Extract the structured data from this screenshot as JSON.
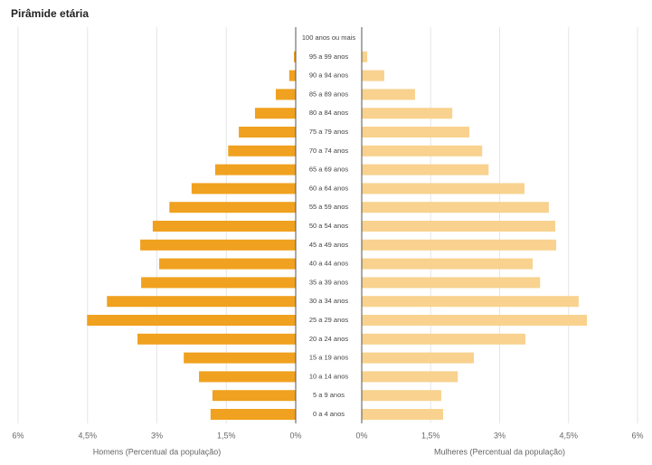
{
  "chart_data": {
    "type": "pyramid",
    "title": "Pirâmide etária",
    "categories": [
      "100 anos ou mais",
      "95 a 99 anos",
      "90 a 94 anos",
      "85 a 89 anos",
      "80 a 84 anos",
      "75 a 79 anos",
      "70 a 74 anos",
      "65 a 69 anos",
      "60 a 64 anos",
      "55 a 59 anos",
      "50 a 54 anos",
      "45 a 49 anos",
      "40 a 44 anos",
      "35 a 39 anos",
      "30 a 34 anos",
      "25 a 29 anos",
      "20 a 24 anos",
      "15 a 19 anos",
      "10 a 14 anos",
      "5 a 9 anos",
      "0 a 4 anos"
    ],
    "series": [
      {
        "side": "left",
        "color": "#f0a11f",
        "axis_label": "Homens (Percentual da população)",
        "values": [
          0.01,
          0.04,
          0.14,
          0.43,
          0.88,
          1.23,
          1.46,
          1.74,
          2.25,
          2.73,
          3.09,
          3.36,
          2.95,
          3.34,
          4.08,
          4.51,
          3.42,
          2.42,
          2.09,
          1.8,
          1.84
        ]
      },
      {
        "side": "right",
        "color": "#f8d28e",
        "axis_label": "Mulheres (Percentual da população)",
        "values": [
          0.01,
          0.12,
          0.49,
          1.16,
          1.97,
          2.34,
          2.62,
          2.76,
          3.54,
          4.07,
          4.21,
          4.23,
          3.72,
          3.88,
          4.72,
          4.9,
          3.56,
          2.44,
          2.09,
          1.73,
          1.77
        ]
      }
    ],
    "xlim": [
      0,
      6
    ],
    "xticks": [
      {
        "value": 0,
        "label": "0%"
      },
      {
        "value": 1.5,
        "label": "1,5%"
      },
      {
        "value": 3,
        "label": "3%"
      },
      {
        "value": 4.5,
        "label": "4,5%"
      },
      {
        "value": 6,
        "label": "6%"
      }
    ],
    "grid": true
  }
}
